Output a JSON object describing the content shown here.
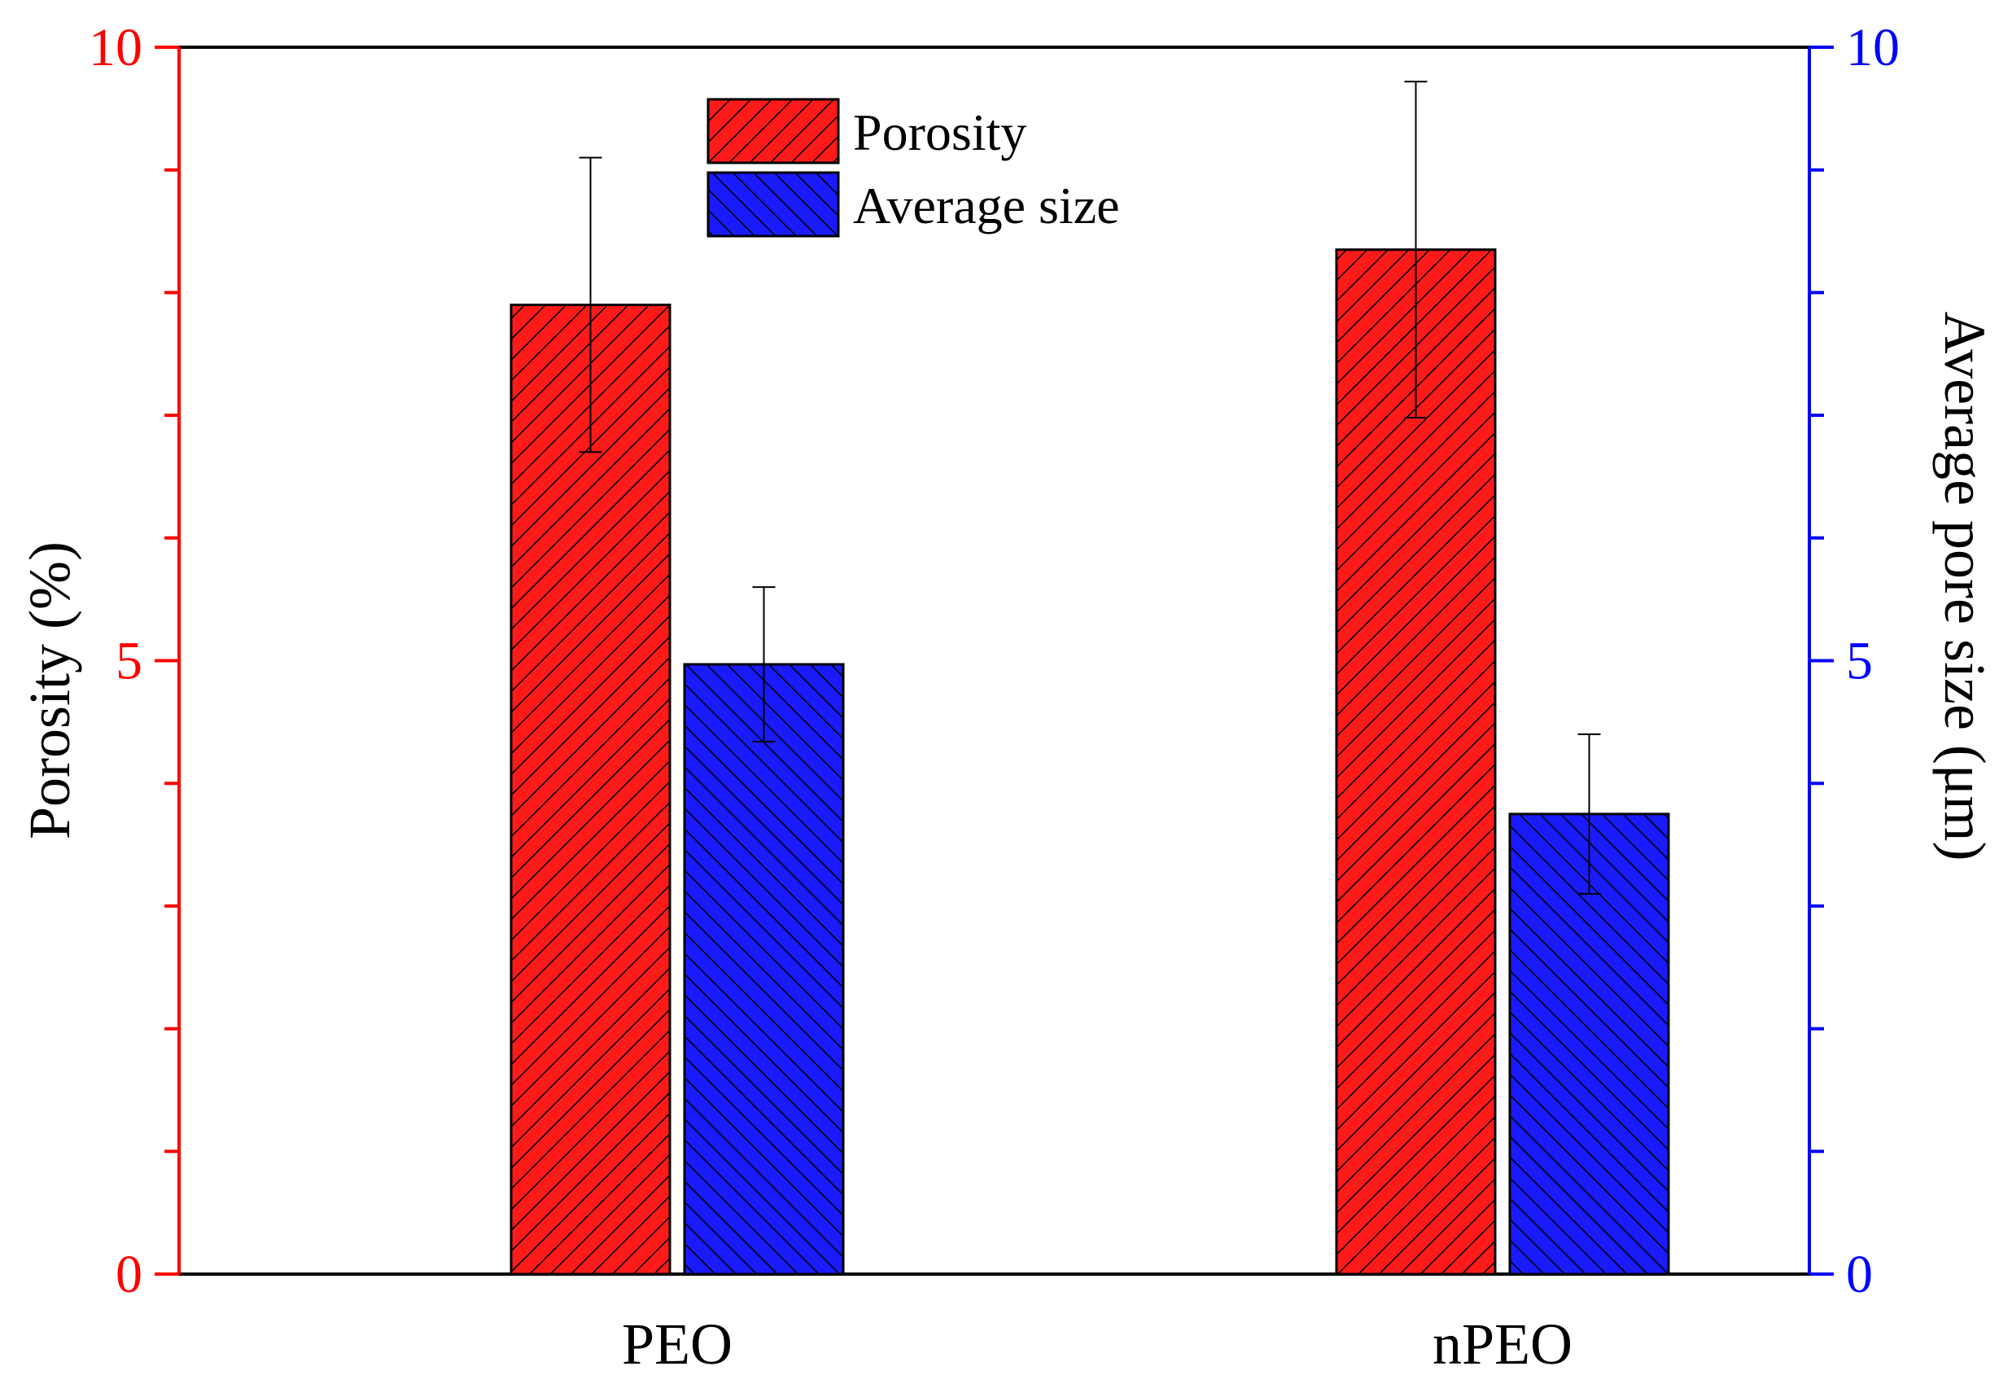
{
  "chart_data": {
    "type": "bar",
    "categories": [
      "PEO",
      "nPEO"
    ],
    "series": [
      {
        "name": "Porosity",
        "axis": "left",
        "values": [
          7.9,
          8.35
        ],
        "errors": [
          1.2,
          1.37
        ],
        "color": "#ff1a1a",
        "hatch": "forward-diagonal"
      },
      {
        "name": "Average size",
        "axis": "right",
        "values": [
          4.97,
          3.75
        ],
        "errors": [
          0.63,
          0.65
        ],
        "color": "#1a1aff",
        "hatch": "backward-diagonal"
      }
    ],
    "y_left": {
      "label": "Porosity (%)",
      "range": [
        0,
        10
      ],
      "major_ticks": [
        0,
        5,
        10
      ],
      "minor_step": 1,
      "color": "#ff0000"
    },
    "y_right": {
      "label": "Average pore size (μm)",
      "range": [
        0,
        10
      ],
      "major_ticks": [
        0,
        5,
        10
      ],
      "minor_step": 1,
      "color": "#0000ff"
    },
    "xlabel": "",
    "title": "",
    "grid": false,
    "legend_position": "top-center"
  }
}
